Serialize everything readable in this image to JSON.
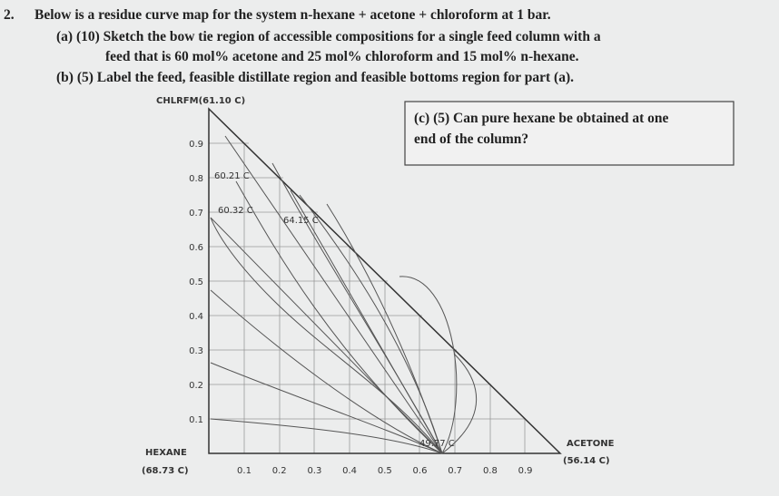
{
  "question": {
    "number": "2.",
    "intro": "Below is a residue curve map for the system n-hexane + acetone + chloroform at 1 bar.",
    "parts": [
      {
        "lines": [
          "(a) (10) Sketch the bow tie region of accessible compositions for a single feed column with a",
          "feed that is 60 mol% acetone and 25 mol% chloroform and 15 mol% n-hexane."
        ]
      },
      {
        "lines": [
          "(b) (5) Label the feed, feasible distillate region and feasible bottoms region for part (a)."
        ]
      }
    ],
    "box": {
      "lines": [
        "(c) (5) Can pure hexane be obtained at one",
        "end of the column?"
      ]
    }
  },
  "diagram": {
    "top_label": "CHLRFM(61.10 C)",
    "left_corner": {
      "name": "HEXANE",
      "temp": "(68.73 C)"
    },
    "right_corner": {
      "name": "ACETONE",
      "temp": "(56.14 C)"
    },
    "y_axis_labels": [
      "0.9",
      "0.8",
      "0.7",
      "0.6",
      "0.5",
      "0.4",
      "0.3",
      "0.2",
      "0.1"
    ],
    "x_axis_labels": [
      "0.1",
      "0.2",
      "0.3",
      "0.4",
      "0.5",
      "0.6",
      "0.7",
      "0.8",
      "0.9"
    ],
    "azeotropes": [
      "60.21 C",
      "60.32 C",
      "64.15 C",
      "49.77 C"
    ]
  }
}
